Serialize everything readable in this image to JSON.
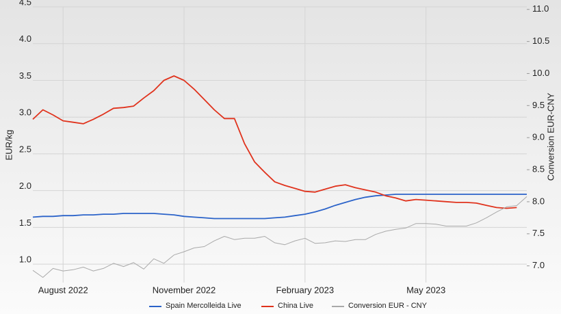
{
  "chart_data": {
    "type": "line",
    "y_label": "EUR/kg",
    "y2_label": "Conversion EUR-CNY",
    "categories": [
      null,
      null,
      null,
      "August 2022",
      null,
      null,
      null,
      null,
      null,
      null,
      null,
      null,
      null,
      null,
      null,
      "November 2022",
      null,
      null,
      null,
      null,
      null,
      null,
      null,
      null,
      null,
      null,
      null,
      "February 2023",
      null,
      null,
      null,
      null,
      null,
      null,
      null,
      null,
      null,
      null,
      null,
      "May 2023",
      null,
      null,
      null,
      null,
      null,
      null,
      null,
      null,
      null,
      null
    ],
    "series": [
      {
        "name": "Spain Mercolleida Live",
        "color": "#2b63c9",
        "values": [
          1.64,
          1.65,
          1.65,
          1.66,
          1.66,
          1.67,
          1.67,
          1.68,
          1.68,
          1.69,
          1.69,
          1.69,
          1.69,
          1.68,
          1.67,
          1.65,
          1.64,
          1.63,
          1.62,
          1.62,
          1.62,
          1.62,
          1.62,
          1.62,
          1.63,
          1.64,
          1.66,
          1.68,
          1.71,
          1.75,
          1.8,
          1.84,
          1.88,
          1.91,
          1.93,
          1.94,
          1.95,
          1.95,
          1.95,
          1.95,
          1.95,
          1.95,
          1.95,
          1.95,
          1.95,
          1.95,
          1.95,
          1.95,
          1.95,
          1.95
        ]
      },
      {
        "name": "China Live",
        "color": "#e0321c",
        "values": [
          2.97,
          3.1,
          3.03,
          2.95,
          2.93,
          2.91,
          2.97,
          3.04,
          3.12,
          3.13,
          3.15,
          3.26,
          3.36,
          3.5,
          3.56,
          3.5,
          3.38,
          3.24,
          3.1,
          2.98,
          2.98,
          2.64,
          2.39,
          2.25,
          2.12,
          2.07,
          2.03,
          1.99,
          1.98,
          2.02,
          2.06,
          2.08,
          2.04,
          2.01,
          1.98,
          1.93,
          1.9,
          1.86,
          1.88,
          1.87,
          1.86,
          1.85,
          1.84,
          1.84,
          1.83,
          1.8,
          1.77,
          1.76,
          1.77,
          null
        ]
      },
      {
        "name": "Conversion EUR - CNY",
        "color": "#a9a9a9",
        "axis": "y2",
        "values": [
          6.93,
          6.82,
          6.96,
          6.92,
          6.94,
          6.98,
          6.92,
          6.96,
          7.04,
          6.99,
          7.05,
          6.95,
          7.11,
          7.04,
          7.17,
          7.22,
          7.28,
          7.3,
          7.39,
          7.46,
          7.41,
          7.43,
          7.43,
          7.46,
          7.36,
          7.33,
          7.39,
          7.43,
          7.35,
          7.36,
          7.39,
          7.38,
          7.41,
          7.41,
          7.49,
          7.54,
          7.57,
          7.59,
          7.66,
          7.66,
          7.65,
          7.62,
          7.62,
          7.62,
          7.67,
          7.75,
          7.84,
          7.92,
          7.94,
          8.08
        ]
      }
    ],
    "ylim": [
      0.75,
      4.5
    ],
    "yticks": [
      {
        "value": 1,
        "label": "1.0"
      },
      1.5,
      {
        "value": 2,
        "label": "2.0"
      },
      2.5,
      {
        "value": 3,
        "label": "3.0"
      },
      3.5,
      {
        "value": 4,
        "label": "4.0"
      },
      4.5
    ],
    "y2lim": [
      6.74,
      11.04
    ],
    "y2ticks": [
      {
        "value": 7,
        "label": "7.0"
      },
      7.5,
      {
        "value": 8,
        "label": "8.0"
      },
      8.5,
      {
        "value": 9,
        "label": "9.0"
      },
      9.5,
      {
        "value": 10,
        "label": "10.0"
      },
      10.5,
      {
        "value": 11,
        "label": "11.0"
      }
    ],
    "grid": true,
    "legend": "bottom"
  }
}
